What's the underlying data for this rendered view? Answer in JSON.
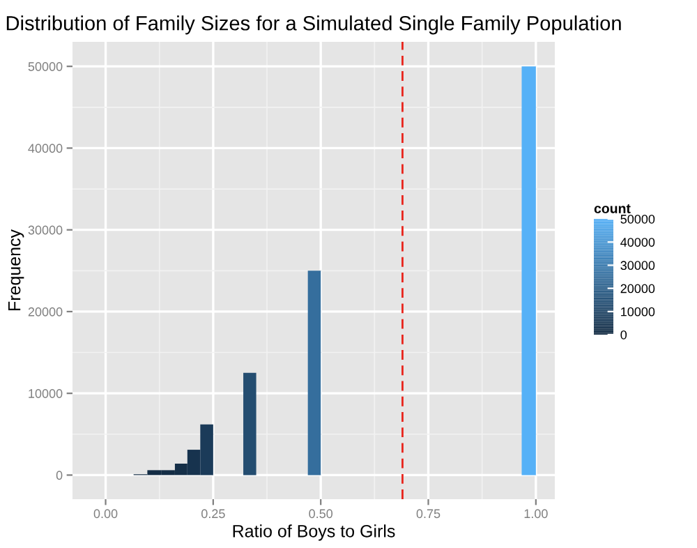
{
  "chart_data": {
    "type": "histogram",
    "title": "Distribution of Family Sizes for a Simulated Single Family Population",
    "xlabel": "Ratio of Boys to Girls",
    "ylabel": "Frequency",
    "clabel": "count",
    "bins": [
      0.065,
      0.097,
      0.129,
      0.161,
      0.19,
      0.22,
      0.25,
      0.32,
      0.35,
      0.47,
      0.5,
      0.967,
      1.0
    ],
    "values": [
      100,
      600,
      600,
      1400,
      3100,
      6200,
      0,
      12500,
      0,
      25000,
      0,
      50000
    ],
    "xlim": [
      -0.077,
      1.044
    ],
    "xticks": [
      {
        "value": 0,
        "label": "0.00"
      },
      0.25,
      {
        "value": 0.5,
        "label": "0.50"
      },
      0.75,
      {
        "value": 1,
        "label": "1.00"
      }
    ],
    "ylim": [
      -2950,
      53000
    ],
    "yticks": [
      0,
      10000,
      20000,
      30000,
      40000,
      50000
    ],
    "clim": [
      0,
      50000
    ],
    "cticks": [
      0,
      10000,
      20000,
      30000,
      40000,
      50000
    ],
    "ref_lines": [
      {
        "axis": "x",
        "value": 0.69,
        "color": "#e8231b",
        "line_style": "dashed"
      }
    ],
    "grid": true
  }
}
